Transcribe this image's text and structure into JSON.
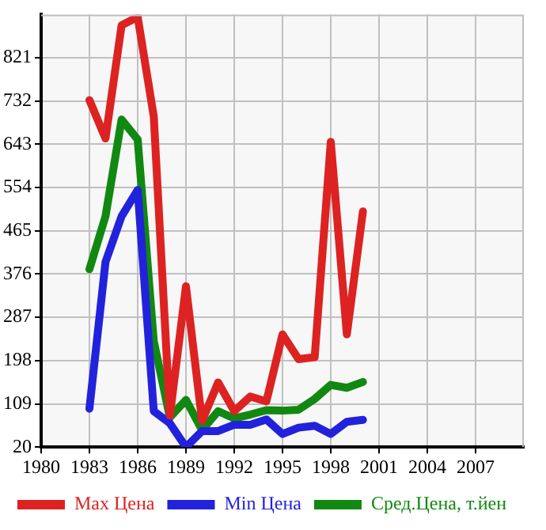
{
  "chart_data": {
    "type": "line",
    "x": [
      1983,
      1984,
      1985,
      1986,
      1987,
      1988,
      1989,
      1990,
      1991,
      1992,
      1993,
      1994,
      1995,
      1996,
      1997,
      1998,
      1999,
      2000
    ],
    "series": [
      {
        "name": "Max Цена",
        "color": "#dd2222",
        "values": [
          734,
          655,
          888,
          905,
          700,
          85,
          351,
          74,
          153,
          94,
          124,
          114,
          252,
          201,
          205,
          648,
          252,
          505
        ]
      },
      {
        "name": "Min Цена",
        "color": "#2222dd",
        "values": [
          99,
          401,
          495,
          549,
          94,
          69,
          20,
          53,
          53,
          66,
          66,
          77,
          47,
          60,
          64,
          47,
          72,
          76
        ]
      },
      {
        "name": "Сред.Цена, т.йен",
        "color": "#118811",
        "values": [
          386,
          495,
          694,
          653,
          238,
          81,
          117,
          55,
          94,
          79,
          87,
          96,
          95,
          97,
          119,
          148,
          142,
          154
        ]
      }
    ],
    "xlim": [
      1980,
      2010
    ],
    "xticks": [
      1980,
      1983,
      1986,
      1989,
      1992,
      1995,
      1998,
      2001,
      2004,
      2007
    ],
    "ylim": [
      20,
      910
    ],
    "yticks": [
      20,
      109,
      198,
      287,
      376,
      465,
      554,
      643,
      732,
      821
    ],
    "grid": true,
    "legend": "bottom",
    "marker": "none",
    "line_style": "solid"
  }
}
